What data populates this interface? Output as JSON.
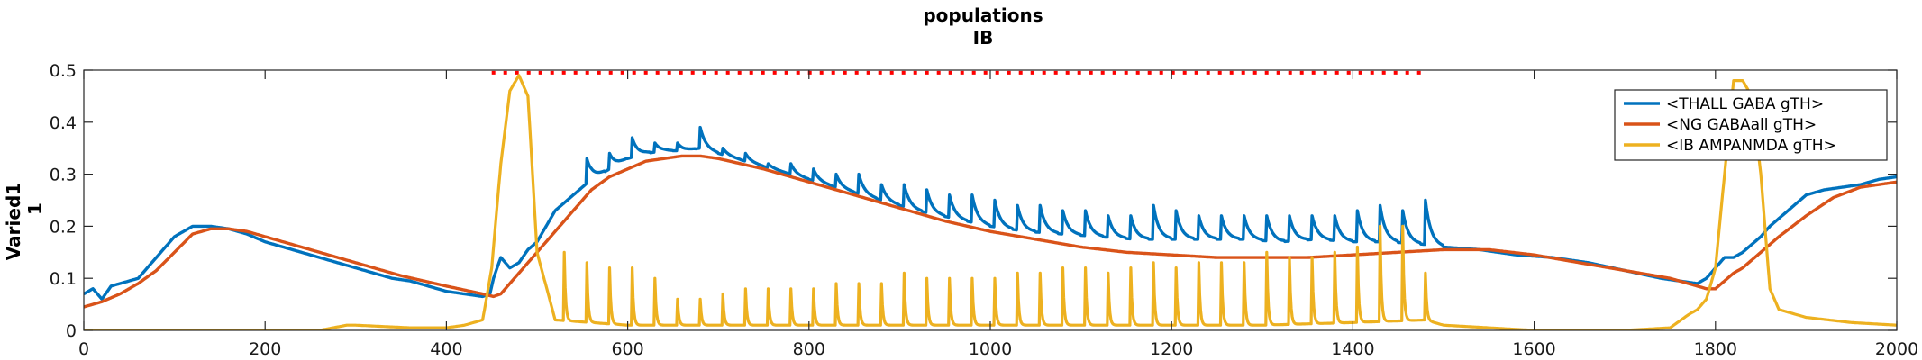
{
  "chart_data": {
    "type": "line",
    "title": [
      "populations",
      "IB"
    ],
    "xlabel": "",
    "ylabel": [
      "Varied1",
      "1"
    ],
    "xlim": [
      0,
      2000
    ],
    "ylim": [
      0,
      0.5
    ],
    "xticks": [
      0,
      200,
      400,
      600,
      800,
      1000,
      1200,
      1400,
      1600,
      1800,
      2000
    ],
    "yticks": [
      0,
      0.1,
      0.2,
      0.3,
      0.4,
      0.5
    ],
    "ytick_labels": [
      "0",
      "0.1",
      "0.2",
      "0.3",
      "0.4",
      "0.5"
    ],
    "grid": false,
    "legend_position": "top-right",
    "colors": [
      "#0072BD",
      "#D95319",
      "#EDB120"
    ],
    "stimulus_marker": {
      "y": 0.495,
      "x_start": 450,
      "x_end": 1480,
      "color": "#FF0000"
    },
    "series": [
      {
        "name": "<THALL GABA gTH>",
        "color": "#0072BD",
        "x": [
          0,
          10,
          20,
          30,
          40,
          60,
          80,
          100,
          120,
          140,
          160,
          180,
          200,
          220,
          240,
          260,
          280,
          300,
          320,
          340,
          360,
          380,
          400,
          420,
          440,
          448,
          452,
          460,
          470,
          480,
          490,
          500,
          520,
          540,
          560,
          580,
          600,
          620,
          640,
          660,
          680,
          700,
          720,
          760,
          800,
          840,
          880,
          920,
          960,
          1000,
          1040,
          1080,
          1120,
          1160,
          1200,
          1240,
          1280,
          1320,
          1360,
          1400,
          1440,
          1480,
          1500,
          1540,
          1580,
          1620,
          1660,
          1700,
          1740,
          1780,
          1790,
          1800,
          1810,
          1820,
          1830,
          1840,
          1850,
          1860,
          1880,
          1900,
          1920,
          1940,
          1960,
          1980,
          2000
        ],
        "y": [
          0.07,
          0.08,
          0.06,
          0.085,
          0.09,
          0.1,
          0.14,
          0.18,
          0.2,
          0.2,
          0.195,
          0.185,
          0.17,
          0.16,
          0.15,
          0.14,
          0.13,
          0.12,
          0.11,
          0.1,
          0.095,
          0.085,
          0.075,
          0.07,
          0.065,
          0.07,
          0.1,
          0.14,
          0.12,
          0.13,
          0.155,
          0.17,
          0.23,
          0.26,
          0.29,
          0.31,
          0.33,
          0.34,
          0.345,
          0.345,
          0.35,
          0.34,
          0.33,
          0.31,
          0.29,
          0.27,
          0.25,
          0.23,
          0.215,
          0.2,
          0.19,
          0.185,
          0.18,
          0.175,
          0.175,
          0.175,
          0.175,
          0.17,
          0.175,
          0.17,
          0.17,
          0.165,
          0.16,
          0.155,
          0.145,
          0.14,
          0.13,
          0.115,
          0.1,
          0.09,
          0.1,
          0.12,
          0.14,
          0.14,
          0.15,
          0.165,
          0.18,
          0.2,
          0.23,
          0.26,
          0.27,
          0.275,
          0.28,
          0.29,
          0.295
        ]
      },
      {
        "name": "<NG GABAall gTH>",
        "color": "#D95319",
        "x": [
          0,
          10,
          20,
          40,
          60,
          80,
          100,
          120,
          140,
          160,
          180,
          200,
          250,
          300,
          350,
          400,
          440,
          452,
          460,
          470,
          480,
          490,
          500,
          520,
          540,
          560,
          580,
          600,
          620,
          640,
          660,
          680,
          700,
          750,
          800,
          850,
          900,
          950,
          1000,
          1050,
          1100,
          1150,
          1200,
          1250,
          1300,
          1350,
          1400,
          1450,
          1500,
          1550,
          1600,
          1650,
          1700,
          1750,
          1790,
          1800,
          1810,
          1820,
          1830,
          1840,
          1850,
          1870,
          1900,
          1930,
          1960,
          2000
        ],
        "y": [
          0.045,
          0.05,
          0.055,
          0.07,
          0.09,
          0.115,
          0.15,
          0.185,
          0.195,
          0.195,
          0.19,
          0.18,
          0.155,
          0.13,
          0.105,
          0.085,
          0.07,
          0.065,
          0.07,
          0.09,
          0.11,
          0.13,
          0.15,
          0.19,
          0.23,
          0.27,
          0.295,
          0.31,
          0.325,
          0.33,
          0.335,
          0.335,
          0.33,
          0.31,
          0.285,
          0.26,
          0.235,
          0.21,
          0.19,
          0.175,
          0.16,
          0.15,
          0.145,
          0.14,
          0.14,
          0.14,
          0.145,
          0.15,
          0.155,
          0.155,
          0.145,
          0.13,
          0.115,
          0.1,
          0.08,
          0.08,
          0.095,
          0.11,
          0.12,
          0.135,
          0.15,
          0.18,
          0.22,
          0.255,
          0.275,
          0.285
        ]
      },
      {
        "name": "<IB AMPANMDA gTH>",
        "color": "#EDB120",
        "x": [
          0,
          100,
          200,
          260,
          290,
          300,
          360,
          400,
          420,
          440,
          450,
          460,
          470,
          480,
          490,
          500,
          520,
          600,
          700,
          800,
          900,
          1000,
          1100,
          1200,
          1300,
          1400,
          1480,
          1500,
          1550,
          1600,
          1650,
          1700,
          1750,
          1770,
          1780,
          1790,
          1800,
          1810,
          1820,
          1830,
          1840,
          1850,
          1860,
          1870,
          1900,
          1950,
          2000
        ],
        "y": [
          0.0,
          0.0,
          0.0,
          0.0,
          0.01,
          0.01,
          0.005,
          0.005,
          0.01,
          0.02,
          0.12,
          0.32,
          0.46,
          0.49,
          0.45,
          0.15,
          0.02,
          0.01,
          0.01,
          0.01,
          0.01,
          0.01,
          0.01,
          0.01,
          0.01,
          0.015,
          0.02,
          0.01,
          0.005,
          0.0,
          0.0,
          0.0,
          0.005,
          0.03,
          0.04,
          0.06,
          0.12,
          0.3,
          0.48,
          0.48,
          0.45,
          0.3,
          0.08,
          0.04,
          0.025,
          0.015,
          0.01
        ]
      }
    ],
    "spikes": {
      "THALL": {
        "times": [
          555,
          580,
          605,
          630,
          655,
          680,
          705,
          730,
          755,
          780,
          805,
          830,
          855,
          880,
          905,
          930,
          955,
          980,
          1005,
          1030,
          1055,
          1080,
          1105,
          1130,
          1155,
          1180,
          1205,
          1230,
          1255,
          1280,
          1305,
          1330,
          1355,
          1380,
          1405,
          1430,
          1455,
          1480
        ],
        "peaks": [
          0.33,
          0.34,
          0.37,
          0.36,
          0.36,
          0.39,
          0.35,
          0.34,
          0.32,
          0.32,
          0.31,
          0.3,
          0.3,
          0.28,
          0.28,
          0.27,
          0.26,
          0.26,
          0.25,
          0.24,
          0.24,
          0.23,
          0.23,
          0.22,
          0.22,
          0.24,
          0.23,
          0.22,
          0.22,
          0.22,
          0.22,
          0.22,
          0.22,
          0.22,
          0.23,
          0.24,
          0.23,
          0.25
        ]
      },
      "IB": {
        "times": [
          530,
          555,
          580,
          605,
          630,
          655,
          680,
          705,
          730,
          755,
          780,
          805,
          830,
          855,
          880,
          905,
          930,
          955,
          980,
          1005,
          1030,
          1055,
          1080,
          1105,
          1130,
          1155,
          1180,
          1205,
          1230,
          1255,
          1280,
          1305,
          1330,
          1355,
          1380,
          1405,
          1430,
          1455,
          1480
        ],
        "peaks": [
          0.15,
          0.13,
          0.12,
          0.12,
          0.1,
          0.06,
          0.06,
          0.07,
          0.08,
          0.08,
          0.08,
          0.08,
          0.09,
          0.09,
          0.09,
          0.11,
          0.1,
          0.1,
          0.1,
          0.1,
          0.11,
          0.11,
          0.12,
          0.12,
          0.11,
          0.12,
          0.13,
          0.12,
          0.13,
          0.13,
          0.13,
          0.15,
          0.14,
          0.14,
          0.15,
          0.16,
          0.2,
          0.2,
          0.11
        ]
      }
    }
  }
}
